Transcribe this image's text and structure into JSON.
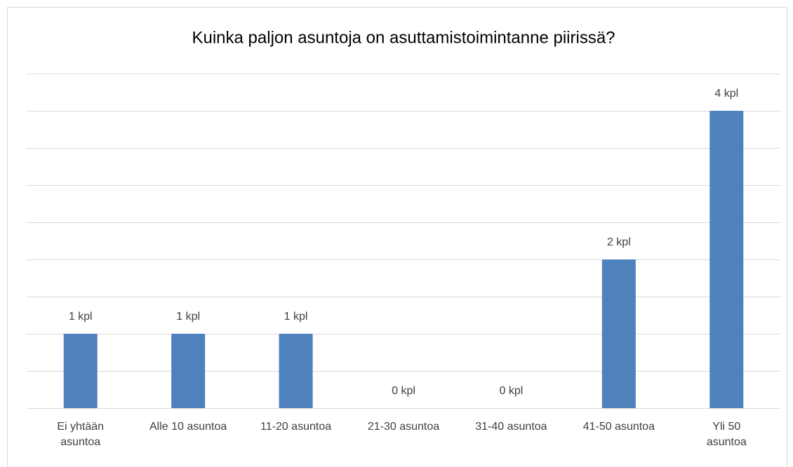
{
  "chart_data": {
    "type": "bar",
    "title": "Kuinka paljon asuntoja on asuttamistoimintanne piirissä?",
    "categories": [
      "Ei yhtään asuntoa",
      "Alle 10 asuntoa",
      "11-20 asuntoa",
      "21-30 asuntoa",
      "31-40 asuntoa",
      "41-50 asuntoa",
      "Yli 50 asuntoa"
    ],
    "values": [
      1,
      1,
      1,
      0,
      0,
      2,
      4
    ],
    "value_labels": [
      "1 kpl",
      "1 kpl",
      "1 kpl",
      "0 kpl",
      "0 kpl",
      "2 kpl",
      "4 kpl"
    ],
    "color": "#4f81bd",
    "ylim": [
      0,
      4.5
    ],
    "yticks": [
      0,
      0.5,
      1,
      1.5,
      2,
      2.5,
      3,
      3.5,
      4,
      4.5
    ],
    "grid": true
  }
}
